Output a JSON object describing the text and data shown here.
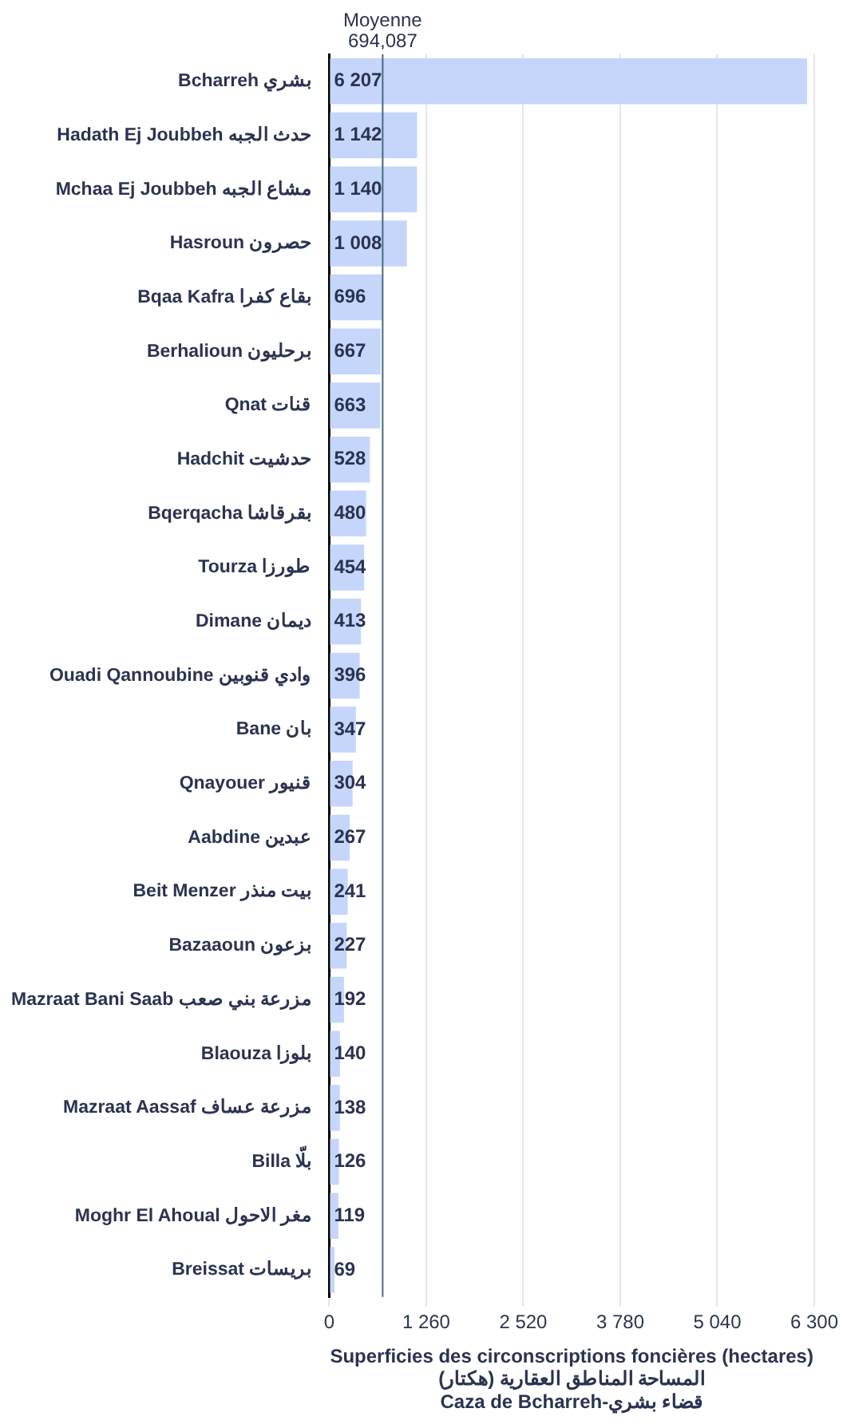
{
  "chart_data": {
    "type": "bar",
    "orientation": "horizontal",
    "xlabel": "Superficies des circonscriptions foncières (hectares)\nالمساحة المناطق العقارية (هكتار)\nCaza de Bcharreh-قضاء بشري",
    "categories": [
      "Bcharreh بشري",
      "Hadath Ej Joubbeh حدث الجبه",
      "Mchaa Ej Joubbeh مشاع الجبه",
      "Hasroun حصرون",
      "Bqaa Kafra بقاع كفرا",
      "Berhalioun برحليون",
      "Qnat قنات",
      "Hadchit حدشيت",
      "Bqerqacha بقرقاشا",
      "Tourza طورزا",
      "Dimane ديمان",
      "Ouadi Qannoubine وادي قنوبين",
      "Bane بان",
      "Qnayouer قنيور",
      "Aabdine عبدين",
      "Beit Menzer بيت منذر",
      "Bazaaoun بزعون",
      "Mazraat Bani Saab مزرعة بني صعب",
      "Blaouza بلوزا",
      "Mazraat Aassaf مزرعة عساف",
      "Billa بلّا",
      "Moghr El Ahoual مغر الاحول",
      "Breissat بريسات"
    ],
    "values": [
      6207,
      1142,
      1140,
      1008,
      696,
      667,
      663,
      528,
      480,
      454,
      413,
      396,
      347,
      304,
      267,
      241,
      227,
      192,
      140,
      138,
      126,
      119,
      69
    ],
    "value_labels": [
      "6 207",
      "1 142",
      "1 140",
      "1 008",
      "696",
      "667",
      "663",
      "528",
      "480",
      "454",
      "413",
      "396",
      "347",
      "304",
      "267",
      "241",
      "227",
      "192",
      "140",
      "138",
      "126",
      "119",
      "69"
    ],
    "color": "#c6d6fb",
    "xlim": [
      0,
      6300
    ],
    "xticks": [
      0,
      {
        "value": 1260,
        "label": "1 260"
      },
      {
        "value": 2520,
        "label": "2 520"
      },
      {
        "value": 3780,
        "label": "3 780"
      },
      {
        "value": 5040,
        "label": "5 040"
      },
      {
        "value": 6300,
        "label": "6 300"
      }
    ],
    "grid": "x",
    "ref_lines": [
      {
        "axis": "x",
        "value": 694.087,
        "label": "Moyenne\n694,087",
        "color": "#4a6a80"
      }
    ]
  }
}
